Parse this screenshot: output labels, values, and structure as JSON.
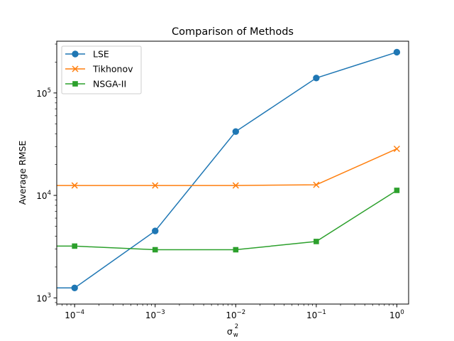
{
  "chart_data": {
    "type": "line",
    "title": "Comparison of Methods",
    "xlabel": "σ_w^2",
    "xlabel_base": "σ",
    "xlabel_sup": "2",
    "xlabel_sub": "w",
    "ylabel": "Average RMSE",
    "xscale": "log",
    "yscale": "log",
    "x": [
      0.0001,
      0.001,
      0.01,
      0.1,
      1
    ],
    "xlim": [
      6e-05,
      1.4
    ],
    "ylim": [
      870,
      320000
    ],
    "xticks": [
      {
        "value": 0.0001,
        "base": "10",
        "exp": "−4"
      },
      {
        "value": 0.001,
        "base": "10",
        "exp": "−3"
      },
      {
        "value": 0.01,
        "base": "10",
        "exp": "−2"
      },
      {
        "value": 0.1,
        "base": "10",
        "exp": "−1"
      },
      {
        "value": 1,
        "base": "10",
        "exp": "0"
      }
    ],
    "yticks": [
      {
        "value": 1000,
        "base": "10",
        "exp": "3"
      },
      {
        "value": 10000,
        "base": "10",
        "exp": "4"
      },
      {
        "value": 100000,
        "base": "10",
        "exp": "5"
      }
    ],
    "legend_position": "upper-left",
    "grid": false,
    "series": [
      {
        "name": "LSE",
        "color": "#1f77b4",
        "marker": "circle",
        "lead_in_y": 1250,
        "values": [
          1250,
          4500,
          42000,
          140000,
          250000
        ]
      },
      {
        "name": "Tikhonov",
        "color": "#ff7f0e",
        "marker": "x",
        "lead_in_y": 12500,
        "values": [
          12500,
          12500,
          12500,
          12700,
          28500
        ]
      },
      {
        "name": "NSGA-II",
        "color": "#2ca02c",
        "marker": "square",
        "lead_in_y": 3200,
        "values": [
          3200,
          2950,
          2950,
          3550,
          11200
        ]
      }
    ]
  }
}
